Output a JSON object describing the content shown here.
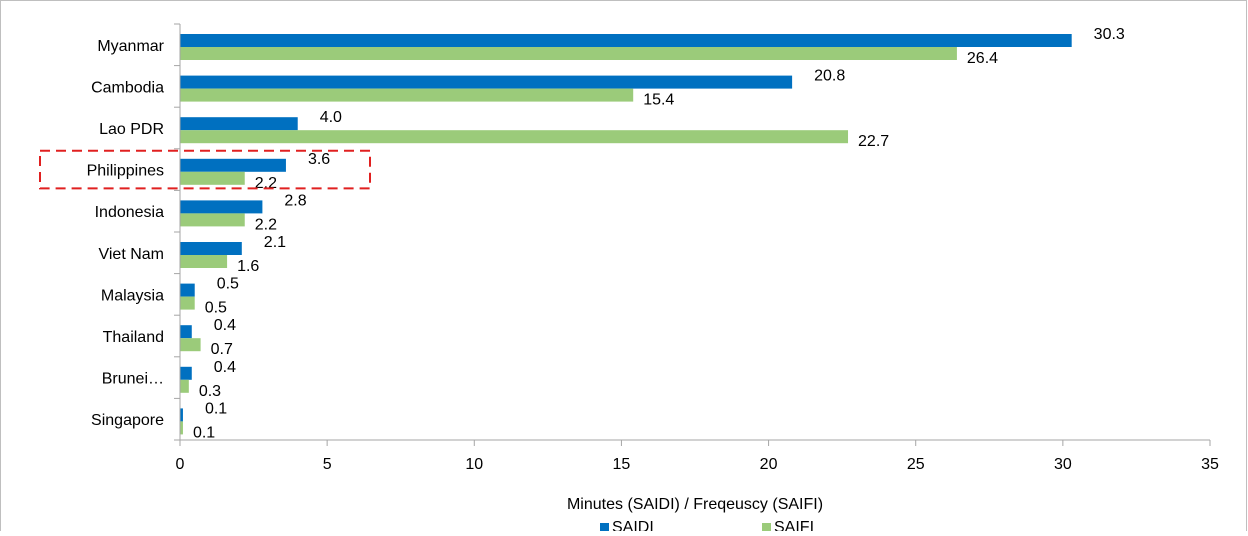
{
  "chart_data": {
    "type": "bar",
    "orientation": "horizontal",
    "categories": [
      "Myanmar",
      "Cambodia",
      "Lao PDR",
      "Philippines",
      "Indonesia",
      "Viet Nam",
      "Malaysia",
      "Thailand",
      "Brunei…",
      "Singapore"
    ],
    "series": [
      {
        "name": "SAIDI",
        "color": "#0070c0",
        "values": [
          30.3,
          20.8,
          4.0,
          3.6,
          2.8,
          2.1,
          0.5,
          0.4,
          0.4,
          0.1
        ]
      },
      {
        "name": "SAIFI",
        "color": "#9bcb7a",
        "values": [
          26.4,
          15.4,
          22.7,
          2.2,
          2.2,
          1.6,
          0.5,
          0.7,
          0.3,
          0.1
        ]
      }
    ],
    "data_labels": [
      [
        "30.3",
        "20.8",
        "4.0",
        "3.6",
        "2.8",
        "2.1",
        "0.5",
        "0.4",
        "0.4",
        "0.1"
      ],
      [
        "26.4",
        "15.4",
        "22.7",
        "2.2",
        "2.2",
        "1.6",
        "0.5",
        "0.7",
        "0.3",
        "0.1"
      ]
    ],
    "xlabel": "Minutes (SAIDI) / Freqeuscy (SAIFI)",
    "ylabel": "",
    "xlim": [
      0,
      35
    ],
    "xticks": [
      0,
      5,
      10,
      15,
      20,
      25,
      30,
      35
    ],
    "xtick_labels": [
      "0",
      "5",
      "10",
      "15",
      "20",
      "25",
      "30",
      "35"
    ],
    "grid": false,
    "legend_position": "bottom",
    "highlight": {
      "category": "Philippines",
      "style": "dashed-red-box",
      "color": "#e02020"
    },
    "frame_color": "#bfbfbf",
    "axis_color": "#a6a6a6"
  }
}
